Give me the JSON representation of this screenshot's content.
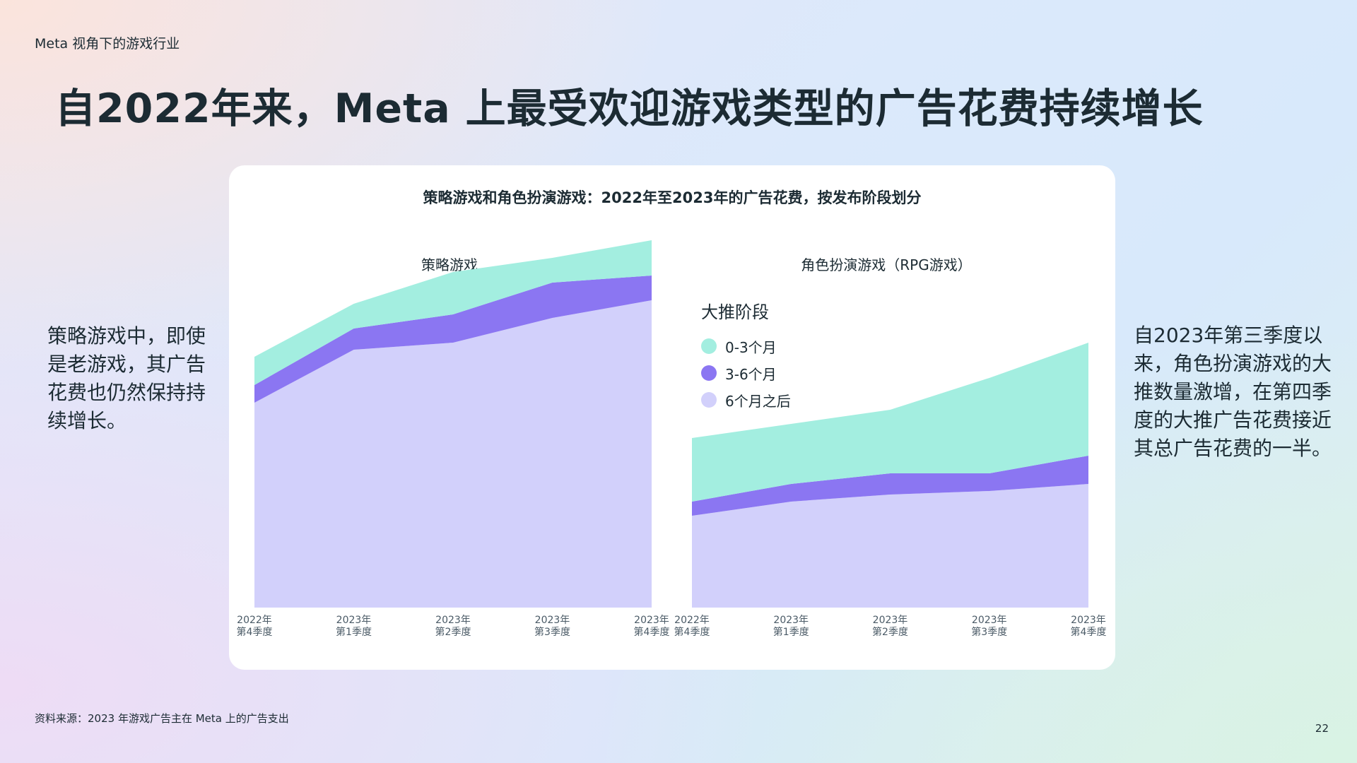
{
  "eyebrow": "Meta 视角下的游戏行业",
  "headline": "自2022年来，Meta 上最受欢迎游戏类型的广告花费持续增长",
  "left_text": "策略游戏中，即使是老游戏，其广告花费也仍然保持持续增长。",
  "right_text": "自2023年第三季度以来，角色扮演游戏的大推数量激增，在第四季度的大推广告花费接近其总广告花费的一半。",
  "footer_source": "资料来源：2023 年游戏广告主在 Meta 上的广告支出",
  "page_number": "22",
  "colors": {
    "early": "#a3eee0",
    "mid": "#8b76f2",
    "late": "#d2d0fb"
  },
  "chart_data": {
    "type": "area",
    "title": "策略游戏和角色扮演游戏：2022年至2023年的广告花费，按发布阶段划分",
    "legend": {
      "title": "大推阶段",
      "placement": "right-panel",
      "entries": [
        "0-3个月",
        "3-6个月",
        "6个月之后"
      ]
    },
    "categories": [
      [
        "2022年",
        "第4季度"
      ],
      [
        "2023年",
        "第1季度"
      ],
      [
        "2023年",
        "第2季度"
      ],
      [
        "2023年",
        "第3季度"
      ],
      [
        "2023年",
        "第4季度"
      ]
    ],
    "stacked": true,
    "y_axis_shown": false,
    "grid": false,
    "ylim": [
      0,
      100
    ],
    "panels": [
      {
        "title": "策略游戏",
        "series": [
          {
            "name": "6个月之后",
            "values": [
              58,
              73,
              75,
              82,
              87
            ]
          },
          {
            "name": "3-6个月",
            "values": [
              5,
              6,
              8,
              10,
              7
            ]
          },
          {
            "name": "0-3个月",
            "values": [
              8,
              7,
              12,
              7,
              10
            ]
          }
        ]
      },
      {
        "title": "角色扮演游戏（RPG游戏）",
        "series": [
          {
            "name": "6个月之后",
            "values": [
              26,
              30,
              32,
              33,
              35
            ]
          },
          {
            "name": "3-6个月",
            "values": [
              4,
              5,
              6,
              5,
              8
            ]
          },
          {
            "name": "0-3个月",
            "values": [
              18,
              17,
              18,
              27,
              32
            ]
          }
        ]
      }
    ]
  }
}
